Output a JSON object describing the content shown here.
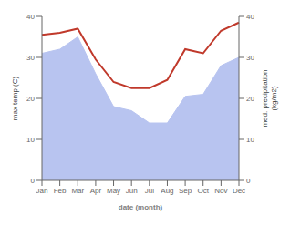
{
  "chart_data": {
    "type": "line",
    "categories": [
      "Jan",
      "Feb",
      "Mar",
      "Apr",
      "May",
      "Jun",
      "Jul",
      "Aug",
      "Sep",
      "Oct",
      "Nov",
      "Dec"
    ],
    "series": [
      {
        "type": "area",
        "color": "#b8c4f0",
        "values": [
          31.0,
          32.0,
          35.0,
          26.0,
          18.0,
          17.0,
          14.0,
          14.0,
          20.5,
          21.0,
          28.0,
          30.0
        ]
      },
      {
        "type": "line",
        "color": "#c0392b",
        "axis": "y2",
        "values": [
          35.5,
          36.0,
          37.0,
          29.5,
          24.0,
          22.5,
          22.5,
          24.5,
          32.0,
          31.0,
          36.5,
          38.5
        ]
      }
    ],
    "xlabel": "date (month)",
    "ylabel": "max temp (C)",
    "y2label": "med. precipitation\n(kg/m2)",
    "ylim": [
      0,
      40
    ],
    "yticks": [
      0,
      10,
      20,
      30,
      40
    ],
    "y2lim": [
      0,
      40
    ],
    "y2ticks": [
      0,
      10,
      20,
      30,
      40
    ],
    "grid": false
  }
}
